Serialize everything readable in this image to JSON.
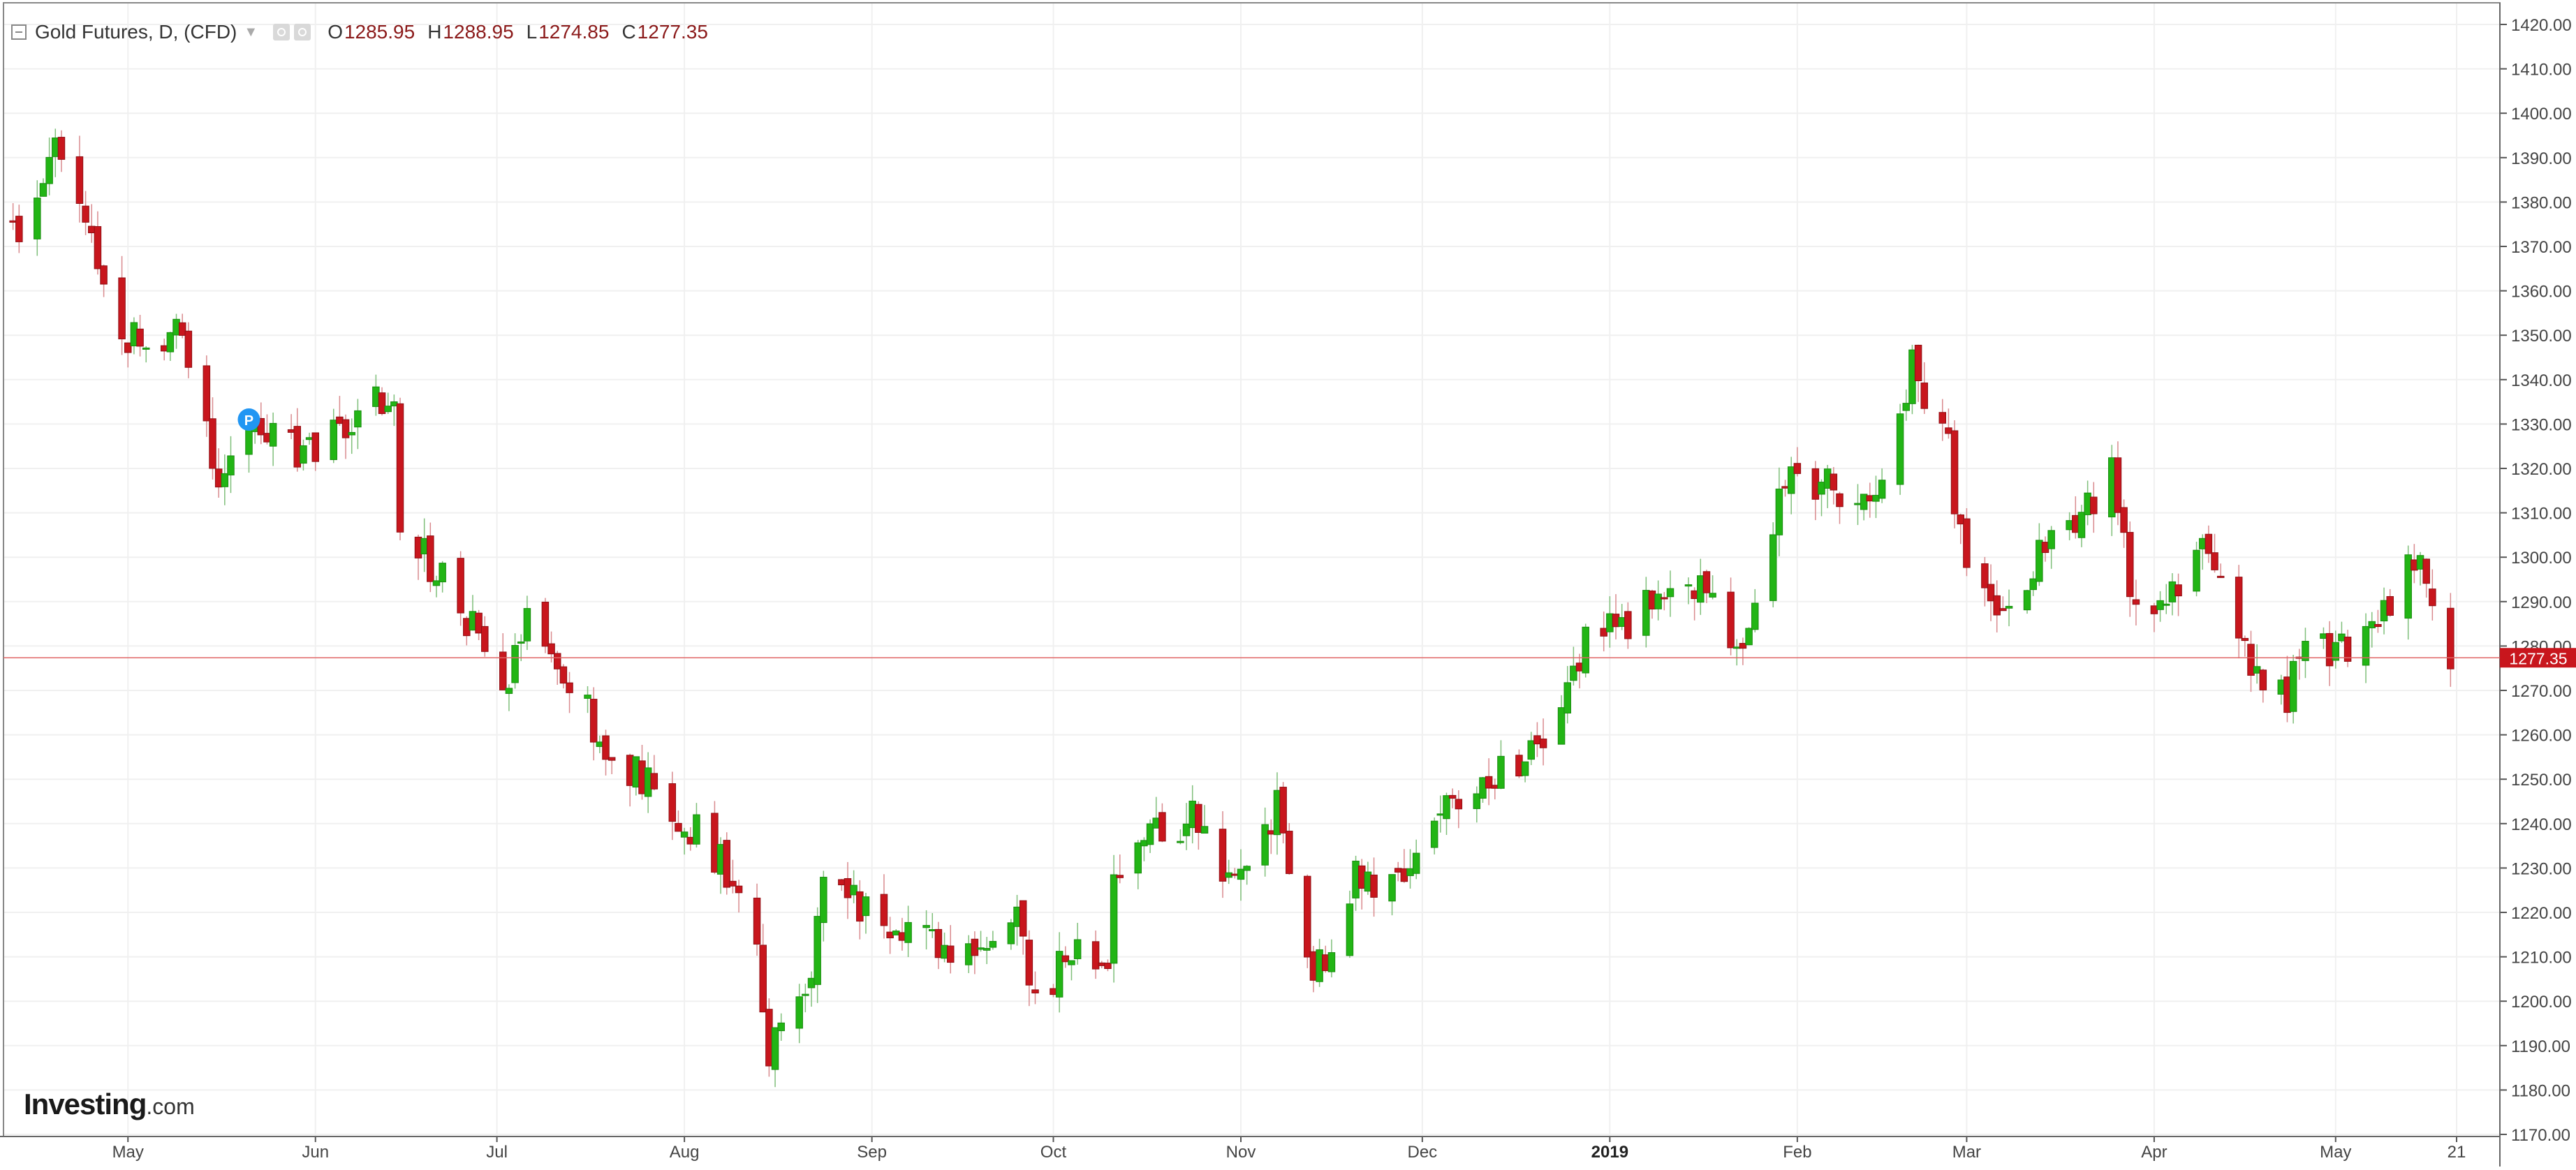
{
  "legend": {
    "title": "Gold Futures, D, (CFD)",
    "open_label": "O",
    "open": "1285.95",
    "high_label": "H",
    "high": "1288.95",
    "low_label": "L",
    "low": "1274.85",
    "close_label": "C",
    "close": "1277.35"
  },
  "logo": {
    "brand": "Investing",
    "suffix": ".com"
  },
  "marker_label": "P",
  "price_tag": "1277.35",
  "colors": {
    "up": "#22b515",
    "down": "#c8161d",
    "price_line": "#e06666",
    "grid": "#f0f0f0",
    "marker": "#2196f3"
  },
  "chart_data": {
    "type": "candlestick",
    "title": "Gold Futures, D, (CFD)",
    "ylim": [
      1170,
      1420
    ],
    "y_ticks": [
      "1170.00",
      "1180.00",
      "1190.00",
      "1200.00",
      "1210.00",
      "1220.00",
      "1230.00",
      "1240.00",
      "1250.00",
      "1260.00",
      "1270.00",
      "1280.00",
      "1290.00",
      "1300.00",
      "1310.00",
      "1320.00",
      "1330.00",
      "1340.00",
      "1350.00",
      "1360.00",
      "1370.00",
      "1380.00",
      "1390.00",
      "1400.00",
      "1410.00",
      "1420.00"
    ],
    "x_range": [
      "2018-04-11",
      "2019-05-21"
    ],
    "x_ticks": [
      {
        "date": "2018-05-01",
        "label": "May",
        "bold": false
      },
      {
        "date": "2018-06-01",
        "label": "Jun",
        "bold": false
      },
      {
        "date": "2018-07-01",
        "label": "Jul",
        "bold": false
      },
      {
        "date": "2018-08-01",
        "label": "Aug",
        "bold": false
      },
      {
        "date": "2018-09-01",
        "label": "Sep",
        "bold": false
      },
      {
        "date": "2018-10-01",
        "label": "Oct",
        "bold": false
      },
      {
        "date": "2018-11-01",
        "label": "Nov",
        "bold": false
      },
      {
        "date": "2018-12-01",
        "label": "Dec",
        "bold": false
      },
      {
        "date": "2019-01-01",
        "label": "2019",
        "bold": true
      },
      {
        "date": "2019-02-01",
        "label": "Feb",
        "bold": false
      },
      {
        "date": "2019-03-01",
        "label": "Mar",
        "bold": false
      },
      {
        "date": "2019-04-01",
        "label": "Apr",
        "bold": false
      },
      {
        "date": "2019-05-01",
        "label": "May",
        "bold": false
      },
      {
        "date": "2019-05-21",
        "label": "21",
        "bold": false
      }
    ],
    "current_price": 1277.35,
    "marker": {
      "date": "2018-05-21",
      "price": 1331,
      "label": "P"
    },
    "waypoints": [
      [
        "2018-04-12",
        1372
      ],
      [
        "2018-04-19",
        1392
      ],
      [
        "2018-04-24",
        1378
      ],
      [
        "2018-04-30",
        1352
      ],
      [
        "2018-05-04",
        1346
      ],
      [
        "2018-05-10",
        1352
      ],
      [
        "2018-05-15",
        1322
      ],
      [
        "2018-05-17",
        1318
      ],
      [
        "2018-05-22",
        1330
      ],
      [
        "2018-05-29",
        1324
      ],
      [
        "2018-06-06",
        1328
      ],
      [
        "2018-06-14",
        1338
      ],
      [
        "2018-06-15",
        1308
      ],
      [
        "2018-06-22",
        1295
      ],
      [
        "2018-06-28",
        1282
      ],
      [
        "2018-07-03",
        1272
      ],
      [
        "2018-07-06",
        1285
      ],
      [
        "2018-07-10",
        1280
      ],
      [
        "2018-07-16",
        1265
      ],
      [
        "2018-07-19",
        1254
      ],
      [
        "2018-07-25",
        1250
      ],
      [
        "2018-08-01",
        1241
      ],
      [
        "2018-08-08",
        1230
      ],
      [
        "2018-08-13",
        1212
      ],
      [
        "2018-08-15",
        1185
      ],
      [
        "2018-08-17",
        1195
      ],
      [
        "2018-08-22",
        1208
      ],
      [
        "2018-08-24",
        1228
      ],
      [
        "2018-09-03",
        1216
      ],
      [
        "2018-09-12",
        1212
      ],
      [
        "2018-09-18",
        1208
      ],
      [
        "2018-09-25",
        1220
      ],
      [
        "2018-09-28",
        1198
      ],
      [
        "2018-10-05",
        1216
      ],
      [
        "2018-10-10",
        1204
      ],
      [
        "2018-10-11",
        1226
      ],
      [
        "2018-10-17",
        1238
      ],
      [
        "2018-10-26",
        1242
      ],
      [
        "2018-10-30",
        1228
      ],
      [
        "2018-11-07",
        1244
      ],
      [
        "2018-11-13",
        1204
      ],
      [
        "2018-11-20",
        1228
      ],
      [
        "2018-11-27",
        1226
      ],
      [
        "2018-12-04",
        1242
      ],
      [
        "2018-12-10",
        1250
      ],
      [
        "2018-12-17",
        1252
      ],
      [
        "2018-12-24",
        1268
      ],
      [
        "2018-12-28",
        1282
      ],
      [
        "2019-01-04",
        1286
      ],
      [
        "2019-01-10",
        1294
      ],
      [
        "2019-01-18",
        1292
      ],
      [
        "2019-01-22",
        1281
      ],
      [
        "2019-01-25",
        1286
      ],
      [
        "2019-01-30",
        1318
      ],
      [
        "2019-02-05",
        1316
      ],
      [
        "2019-02-14",
        1312
      ],
      [
        "2019-02-20",
        1344
      ],
      [
        "2019-02-26",
        1324
      ],
      [
        "2019-03-01",
        1294
      ],
      [
        "2019-03-07",
        1284
      ],
      [
        "2019-03-14",
        1302
      ],
      [
        "2019-03-20",
        1308
      ],
      [
        "2019-03-25",
        1322
      ],
      [
        "2019-03-28",
        1293
      ],
      [
        "2019-04-04",
        1290
      ],
      [
        "2019-04-09",
        1304
      ],
      [
        "2019-04-12",
        1296
      ],
      [
        "2019-04-17",
        1276
      ],
      [
        "2019-04-23",
        1269
      ],
      [
        "2019-04-26",
        1284
      ],
      [
        "2019-05-01",
        1278
      ],
      [
        "2019-05-03",
        1281
      ],
      [
        "2019-05-08",
        1285
      ],
      [
        "2019-05-13",
        1300
      ],
      [
        "2019-05-16",
        1297
      ],
      [
        "2019-05-20",
        1277
      ]
    ]
  }
}
